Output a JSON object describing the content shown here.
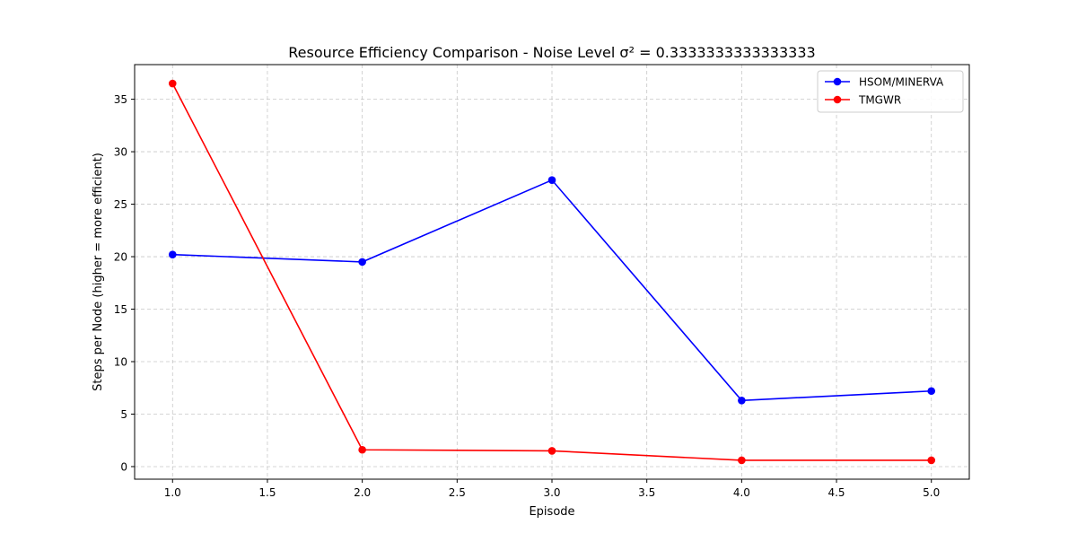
{
  "chart_data": {
    "type": "line",
    "title": "Resource Efficiency Comparison - Noise Level σ² = 0.3333333333333333",
    "xlabel": "Episode",
    "ylabel": "Steps per Node (higher = more efficient)",
    "xlim": [
      0.8,
      5.2
    ],
    "ylim": [
      -1.2,
      38.3
    ],
    "x_ticks": [
      1.0,
      1.5,
      2.0,
      2.5,
      3.0,
      3.5,
      4.0,
      4.5,
      5.0
    ],
    "x_tick_labels": [
      "1.0",
      "1.5",
      "2.0",
      "2.5",
      "3.0",
      "3.5",
      "4.0",
      "4.5",
      "5.0"
    ],
    "y_ticks": [
      0,
      5,
      10,
      15,
      20,
      25,
      30,
      35
    ],
    "y_tick_labels": [
      "0",
      "5",
      "10",
      "15",
      "20",
      "25",
      "30",
      "35"
    ],
    "grid": true,
    "legend_position": "top-right",
    "x": [
      1,
      2,
      3,
      4,
      5
    ],
    "series": [
      {
        "name": "HSOM/MINERVA",
        "color": "#0000ff",
        "marker": "circle",
        "values": [
          20.2,
          19.5,
          27.3,
          6.3,
          7.2
        ]
      },
      {
        "name": "TMGWR",
        "color": "#ff0000",
        "marker": "circle",
        "values": [
          36.5,
          1.6,
          1.5,
          0.6,
          0.6
        ]
      }
    ]
  }
}
